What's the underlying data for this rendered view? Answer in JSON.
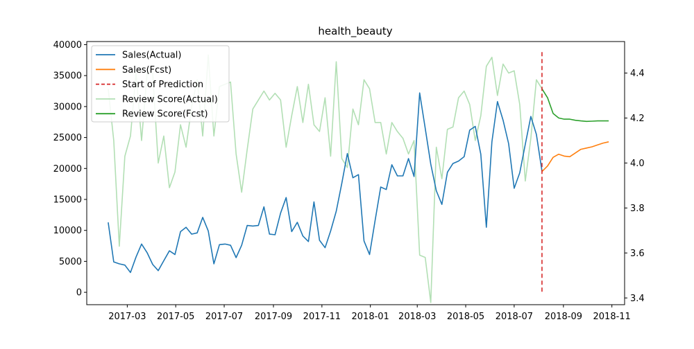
{
  "chart_data": {
    "type": "line",
    "title": "health_beauty",
    "xlabel": "",
    "ylabel": "",
    "x_tick_labels": [
      "2017-03",
      "2017-05",
      "2017-07",
      "2017-09",
      "2017-11",
      "2018-01",
      "2018-03",
      "2018-05",
      "2018-07",
      "2018-09",
      "2018-11"
    ],
    "x_tick_dates": [
      "2017-03-01",
      "2017-05-01",
      "2017-07-01",
      "2017-09-01",
      "2017-11-01",
      "2018-01-01",
      "2018-03-01",
      "2018-05-01",
      "2018-07-01",
      "2018-09-01",
      "2018-11-01"
    ],
    "xlim": [
      "2017-01-09",
      "2018-11-17"
    ],
    "y_left": {
      "lim": [
        -2000,
        40500
      ],
      "ticks": [
        0,
        5000,
        10000,
        15000,
        20000,
        25000,
        30000,
        35000,
        40000
      ]
    },
    "y_right": {
      "lim": [
        3.37,
        4.54
      ],
      "ticks": [
        3.4,
        3.6,
        3.8,
        4.0,
        4.2,
        4.4
      ],
      "tick_labels": [
        "3.4",
        "3.6",
        "3.8",
        "4.0",
        "4.2",
        "4.4"
      ]
    },
    "legend_position": "top-left",
    "series": [
      {
        "name": "Sales(Actual)",
        "axis": "left",
        "color": "#1f77b4",
        "style": "solid",
        "x": [
          "2017-02-05",
          "2017-02-12",
          "2017-02-19",
          "2017-02-26",
          "2017-03-05",
          "2017-03-12",
          "2017-03-19",
          "2017-03-26",
          "2017-04-02",
          "2017-04-09",
          "2017-04-16",
          "2017-04-23",
          "2017-04-30",
          "2017-05-07",
          "2017-05-14",
          "2017-05-21",
          "2017-05-28",
          "2017-06-04",
          "2017-06-11",
          "2017-06-18",
          "2017-06-25",
          "2017-07-02",
          "2017-07-09",
          "2017-07-16",
          "2017-07-23",
          "2017-07-30",
          "2017-08-06",
          "2017-08-13",
          "2017-08-20",
          "2017-08-27",
          "2017-09-03",
          "2017-09-10",
          "2017-09-17",
          "2017-09-24",
          "2017-10-01",
          "2017-10-08",
          "2017-10-15",
          "2017-10-22",
          "2017-10-29",
          "2017-11-05",
          "2017-11-12",
          "2017-11-19",
          "2017-11-26",
          "2017-12-03",
          "2017-12-10",
          "2017-12-17",
          "2017-12-24",
          "2017-12-31",
          "2018-01-07",
          "2018-01-14",
          "2018-01-21",
          "2018-01-28",
          "2018-02-04",
          "2018-02-11",
          "2018-02-18",
          "2018-02-25",
          "2018-03-04",
          "2018-03-11",
          "2018-03-18",
          "2018-03-25",
          "2018-04-01",
          "2018-04-08",
          "2018-04-15",
          "2018-04-22",
          "2018-04-29",
          "2018-05-06",
          "2018-05-13",
          "2018-05-20",
          "2018-05-27",
          "2018-06-03",
          "2018-06-10",
          "2018-06-17",
          "2018-06-24",
          "2018-07-01",
          "2018-07-08",
          "2018-07-15",
          "2018-07-22",
          "2018-07-29",
          "2018-08-05"
        ],
        "y": [
          11300,
          4900,
          4600,
          4400,
          3200,
          5700,
          7800,
          6400,
          4500,
          3500,
          5100,
          6700,
          6100,
          9800,
          10500,
          9400,
          9600,
          12100,
          9900,
          4600,
          7700,
          7800,
          7600,
          5600,
          7600,
          10800,
          10700,
          10800,
          13800,
          9400,
          9300,
          12800,
          15300,
          9800,
          11300,
          9100,
          8200,
          14600,
          8400,
          7200,
          9900,
          13100,
          17600,
          22400,
          18500,
          19000,
          8300,
          6100,
          11600,
          17000,
          16600,
          20600,
          18800,
          18800,
          21600,
          18700,
          32200,
          26500,
          20700,
          16400,
          14200,
          19400,
          20800,
          21200,
          21900,
          26200,
          26800,
          22300,
          10500,
          24300,
          30800,
          27800,
          24000,
          16800,
          19300,
          23900,
          28400,
          25500,
          19600
        ]
      },
      {
        "name": "Sales(Fcst)",
        "axis": "left",
        "color": "#ff7f0e",
        "style": "solid",
        "x": [
          "2018-08-05",
          "2018-08-12",
          "2018-08-19",
          "2018-08-26",
          "2018-09-02",
          "2018-09-09",
          "2018-09-16",
          "2018-09-23",
          "2018-09-30",
          "2018-10-07",
          "2018-10-14",
          "2018-10-21",
          "2018-10-28"
        ],
        "y": [
          19500,
          20400,
          21800,
          22300,
          22000,
          21900,
          22500,
          23100,
          23300,
          23500,
          23800,
          24100,
          24300
        ]
      },
      {
        "name": "Review Score(Actual)",
        "axis": "right",
        "color": "#b2dfb4",
        "style": "solid",
        "x": [
          "2017-02-05",
          "2017-02-12",
          "2017-02-19",
          "2017-02-26",
          "2017-03-05",
          "2017-03-12",
          "2017-03-19",
          "2017-03-26",
          "2017-04-02",
          "2017-04-09",
          "2017-04-16",
          "2017-04-23",
          "2017-04-30",
          "2017-05-07",
          "2017-05-14",
          "2017-05-21",
          "2017-05-28",
          "2017-06-04",
          "2017-06-11",
          "2017-06-18",
          "2017-06-25",
          "2017-07-02",
          "2017-07-09",
          "2017-07-16",
          "2017-07-23",
          "2017-07-30",
          "2017-08-06",
          "2017-08-13",
          "2017-08-20",
          "2017-08-27",
          "2017-09-03",
          "2017-09-10",
          "2017-09-17",
          "2017-09-24",
          "2017-10-01",
          "2017-10-08",
          "2017-10-15",
          "2017-10-22",
          "2017-10-29",
          "2017-11-05",
          "2017-11-12",
          "2017-11-19",
          "2017-11-26",
          "2017-12-03",
          "2017-12-10",
          "2017-12-17",
          "2017-12-24",
          "2017-12-31",
          "2018-01-07",
          "2018-01-14",
          "2018-01-21",
          "2018-01-28",
          "2018-02-04",
          "2018-02-11",
          "2018-02-18",
          "2018-02-25",
          "2018-03-04",
          "2018-03-11",
          "2018-03-18",
          "2018-03-25",
          "2018-04-01",
          "2018-04-08",
          "2018-04-15",
          "2018-04-22",
          "2018-04-29",
          "2018-05-06",
          "2018-05-13",
          "2018-05-20",
          "2018-05-27",
          "2018-06-03",
          "2018-06-10",
          "2018-06-17",
          "2018-06-24",
          "2018-07-01",
          "2018-07-08",
          "2018-07-15",
          "2018-07-22",
          "2018-07-29",
          "2018-08-05"
        ],
        "y": [
          4.33,
          4.1,
          3.63,
          4.03,
          4.12,
          4.4,
          4.1,
          4.4,
          4.4,
          4.0,
          4.12,
          3.89,
          3.96,
          4.17,
          4.07,
          4.25,
          4.37,
          4.12,
          4.48,
          4.12,
          4.34,
          4.35,
          4.36,
          4.04,
          3.87,
          4.06,
          4.24,
          4.28,
          4.32,
          4.28,
          4.31,
          4.28,
          4.07,
          4.21,
          4.34,
          4.18,
          4.35,
          4.17,
          4.14,
          4.29,
          4.03,
          4.45,
          4.02,
          3.98,
          4.24,
          4.17,
          4.37,
          4.33,
          4.18,
          4.18,
          4.04,
          4.18,
          4.14,
          4.11,
          4.04,
          4.1,
          3.59,
          3.58,
          3.38,
          4.07,
          3.93,
          4.15,
          4.16,
          4.29,
          4.32,
          4.26,
          4.1,
          4.21,
          4.43,
          4.47,
          4.3,
          4.44,
          4.4,
          4.41,
          4.26,
          3.92,
          4.11,
          4.37,
          4.33
        ]
      },
      {
        "name": "Review Score(Fcst)",
        "axis": "right",
        "color": "#2ca02c",
        "style": "solid",
        "x": [
          "2018-08-05",
          "2018-08-12",
          "2018-08-19",
          "2018-08-26",
          "2018-09-02",
          "2018-09-09",
          "2018-09-16",
          "2018-09-23",
          "2018-09-30",
          "2018-10-07",
          "2018-10-14",
          "2018-10-21",
          "2018-10-28"
        ],
        "y": [
          4.33,
          4.29,
          4.22,
          4.2,
          4.195,
          4.195,
          4.19,
          4.187,
          4.185,
          4.186,
          4.187,
          4.187,
          4.187
        ]
      }
    ],
    "vline": {
      "name": "Start of Prediction",
      "x": "2018-08-05",
      "color": "#d62728",
      "style": "dashed"
    }
  }
}
